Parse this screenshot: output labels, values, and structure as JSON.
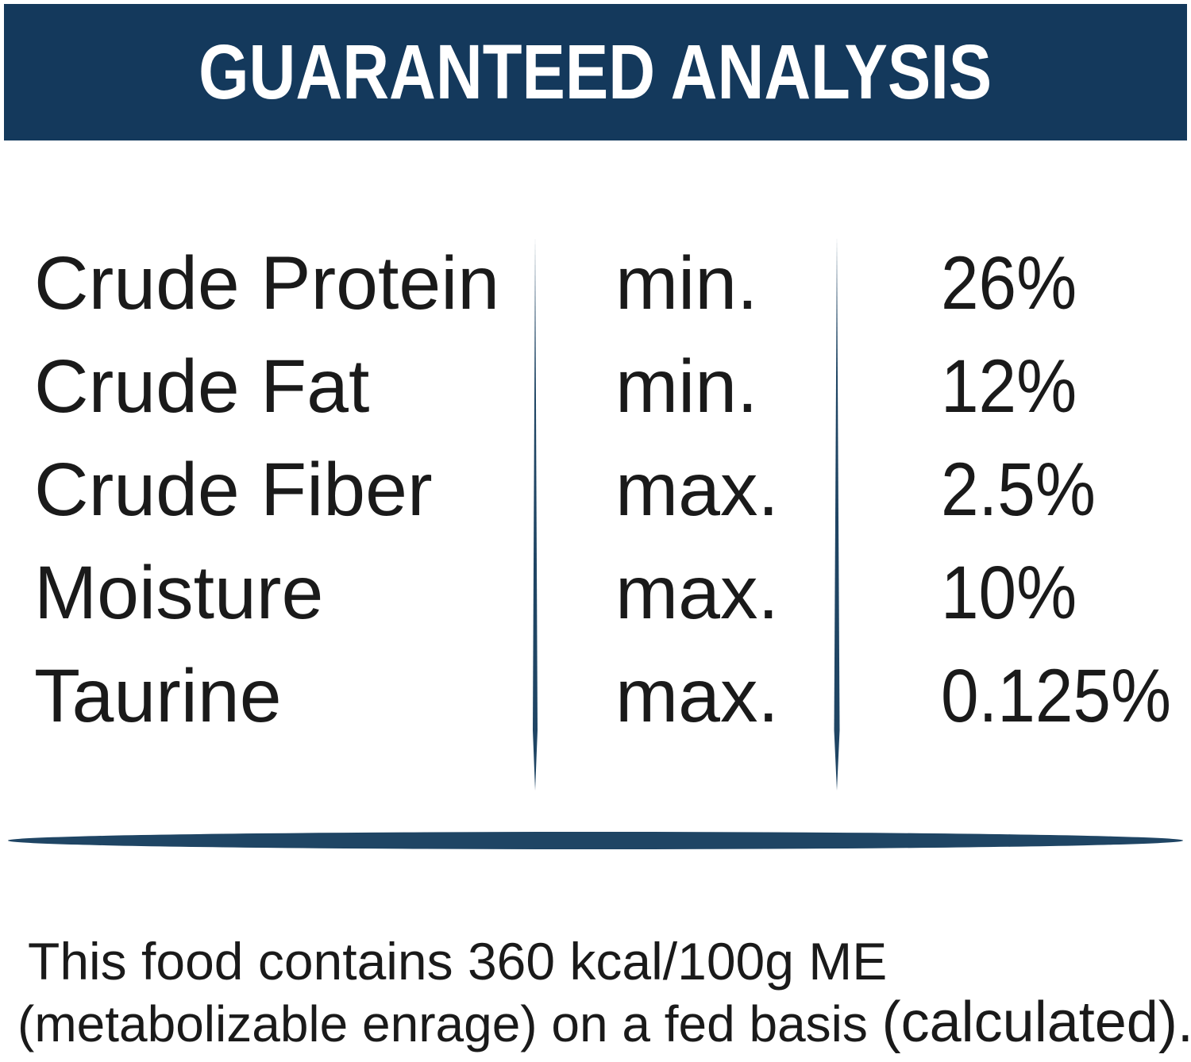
{
  "colors": {
    "navy": "#14395c",
    "divider": "#1f4564",
    "text": "#1a1a1a",
    "title": "#ffffff",
    "background": "#ffffff"
  },
  "header": {
    "title": "GUARANTEED ANALYSIS"
  },
  "table": {
    "rows": [
      {
        "label": "Crude Protein",
        "qualifier": "min.",
        "value": "26%"
      },
      {
        "label": "Crude Fat",
        "qualifier": "min.",
        "value": "12%"
      },
      {
        "label": "Crude Fiber",
        "qualifier": "max.",
        "value": "2.5%"
      },
      {
        "label": "Moisture",
        "qualifier": "max.",
        "value": "10%"
      },
      {
        "label": "Taurine",
        "qualifier": "max.",
        "value": "0.125%"
      }
    ]
  },
  "footer": {
    "line1": "This food contains 360 kcal/100g ME",
    "line2_part1": "(metabolizable enrage) on a fed basis ",
    "line2_part2": "(calculated)."
  }
}
